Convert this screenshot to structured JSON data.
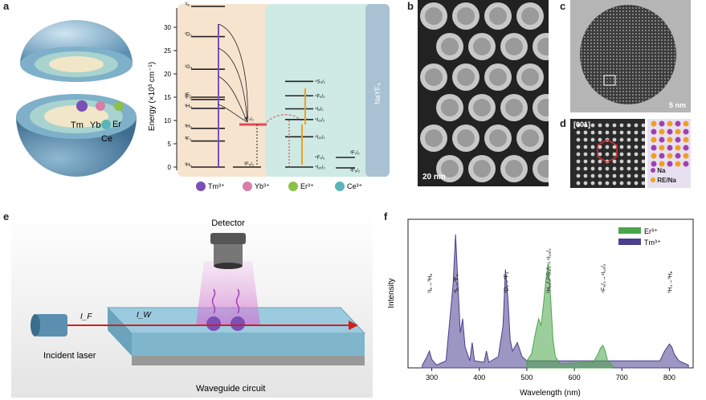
{
  "panels": {
    "a": "a",
    "b": "b",
    "c": "c",
    "d": "d",
    "e": "e",
    "f": "f"
  },
  "panel_a": {
    "ions": [
      "Tm",
      "Yb",
      "Er",
      "Ce"
    ],
    "shell_label": "NaYF₄",
    "y_axis_label": "Energy (×10³ cm⁻¹)",
    "y_ticks": [
      "0",
      "5",
      "10",
      "15",
      "20",
      "25",
      "30"
    ],
    "tm_levels": [
      "¹I₆",
      "¹D₂",
      "¹G₄",
      "³F₂",
      "³F₃",
      "³H₄",
      "³H₅",
      "³F₄",
      "³H₆"
    ],
    "yb_levels": [
      "²F₇/₂",
      "²F₅/₂"
    ],
    "er_levels": [
      "⁴S₃/₂",
      "⁴F₉/₂",
      "⁴I₉/₂",
      "⁴I₁₁/₂",
      "⁴I₁₃/₂",
      "⁴I₁₅/₂",
      "⁴F₇/₂"
    ],
    "ce_levels": [
      "²F₇/₂",
      "²F₅/₂"
    ],
    "legend": [
      "Tm³⁺",
      "Yb³⁺",
      "Er³⁺",
      "Ce³⁺"
    ],
    "legend_colors": [
      "#7b4fb5",
      "#d77fa6",
      "#8cc04b",
      "#5ab5b8"
    ]
  },
  "panel_b": {
    "scale": "20 nm"
  },
  "panel_c": {
    "scale": "5 nm"
  },
  "panel_d": {
    "zone": "[001]",
    "legend_na": "Na",
    "legend_re": "RE/Na"
  },
  "panel_e": {
    "detector": "Detector",
    "incident_laser": "Incident laser",
    "waveguide": "Waveguide circuit",
    "i_f": "I_F",
    "i_w": "I_W"
  },
  "chart_data": {
    "type": "area",
    "xlabel": "Wavelength (nm)",
    "ylabel": "Intensity",
    "xlim": [
      250,
      850
    ],
    "x_ticks": [
      300,
      400,
      500,
      600,
      700,
      800
    ],
    "legend_position": "top-right",
    "series": [
      {
        "name": "Er³⁺",
        "color": "#4aa64a",
        "x": [
          500,
          510,
          520,
          525,
          530,
          535,
          540,
          545,
          550,
          555,
          560,
          570,
          640,
          650,
          655,
          660,
          665,
          670,
          680
        ],
        "y": [
          0.05,
          0.1,
          0.28,
          0.35,
          0.3,
          0.45,
          0.62,
          0.75,
          0.5,
          0.2,
          0.08,
          0.03,
          0.04,
          0.1,
          0.14,
          0.16,
          0.12,
          0.05,
          0.02
        ]
      },
      {
        "name": "Tm³⁺",
        "color": "#4b3f8f",
        "x": [
          280,
          290,
          295,
          300,
          310,
          330,
          345,
          350,
          355,
          360,
          365,
          370,
          380,
          385,
          390,
          410,
          415,
          420,
          440,
          450,
          455,
          460,
          465,
          470,
          480,
          490,
          500,
          780,
          790,
          800,
          805,
          810,
          820,
          840
        ],
        "y": [
          0.02,
          0.08,
          0.12,
          0.06,
          0.02,
          0.05,
          0.6,
          0.95,
          0.6,
          0.25,
          0.35,
          0.15,
          0.05,
          0.18,
          0.05,
          0.04,
          0.12,
          0.04,
          0.08,
          0.3,
          0.7,
          0.5,
          0.2,
          0.12,
          0.18,
          0.08,
          0.05,
          0.05,
          0.12,
          0.17,
          0.15,
          0.1,
          0.05,
          0.02
        ]
      }
    ],
    "annotations": [
      {
        "text": "¹I₆→³H₆",
        "x": 295
      },
      {
        "text": "¹I₆→³F₄",
        "x": 350
      },
      {
        "text": "¹D₂→³F₄",
        "x": 455
      },
      {
        "text": "²H₁₁/₂/⁴S₃/₂→⁴I₁₅/₂",
        "x": 545
      },
      {
        "text": "⁴F₉/₂→⁴I₁₅/₂",
        "x": 660
      },
      {
        "text": "³H₄→³H₆",
        "x": 800
      }
    ]
  }
}
